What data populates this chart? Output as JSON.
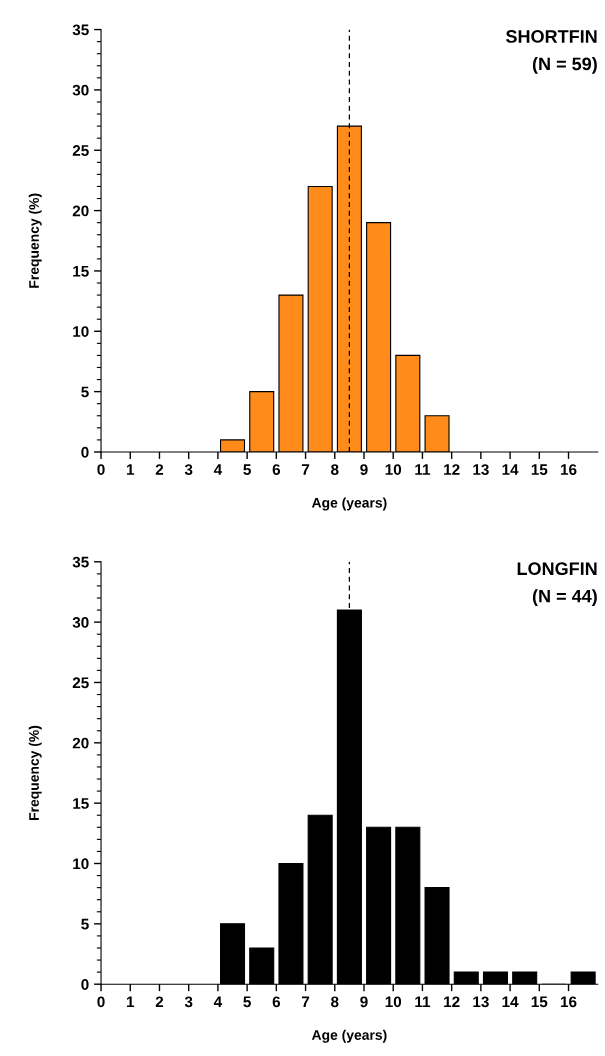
{
  "chart_data": [
    {
      "type": "histogram",
      "title": "SHORTFIN",
      "subtitle": "(N = 59)",
      "xlabel": "Age (years)",
      "ylabel": "Frequency (%)",
      "bins": [
        4,
        5,
        6,
        7,
        8,
        9,
        10,
        11,
        12
      ],
      "values": [
        1,
        5,
        13,
        22,
        27,
        19,
        8,
        3
      ],
      "color": "#ff8c1a",
      "xlim": [
        0,
        17
      ],
      "ylim": [
        0,
        35
      ],
      "xticks": [
        0,
        1,
        2,
        3,
        4,
        5,
        6,
        7,
        8,
        9,
        10,
        11,
        12,
        13,
        14,
        15,
        16
      ],
      "yticks": [
        0,
        5,
        10,
        15,
        20,
        25,
        30,
        35
      ],
      "ref_lines": [
        {
          "axis": "x",
          "value": 8.5,
          "label": null,
          "color": "#000000",
          "line_style": "dashed"
        }
      ],
      "grid": false,
      "legend": false
    },
    {
      "type": "histogram",
      "title": "LONGFIN",
      "subtitle": "(N = 44)",
      "xlabel": "Age (years)",
      "ylabel": "Frequency (%)",
      "bins": [
        4,
        5,
        6,
        7,
        8,
        9,
        10,
        11,
        12,
        13,
        14,
        15,
        16,
        17
      ],
      "values": [
        5,
        3,
        10,
        14,
        31,
        13,
        13,
        8,
        1,
        1,
        1,
        0,
        1
      ],
      "color": "#000000",
      "xlim": [
        0,
        17
      ],
      "ylim": [
        0,
        35
      ],
      "xticks": [
        0,
        1,
        2,
        3,
        4,
        5,
        6,
        7,
        8,
        9,
        10,
        11,
        12,
        13,
        14,
        15,
        16
      ],
      "yticks": [
        0,
        5,
        10,
        15,
        20,
        25,
        30,
        35
      ],
      "ref_lines": [
        {
          "axis": "x",
          "value": 8.5,
          "label": null,
          "color": "#000000",
          "line_style": "dashed"
        }
      ],
      "grid": false,
      "legend": false
    }
  ]
}
